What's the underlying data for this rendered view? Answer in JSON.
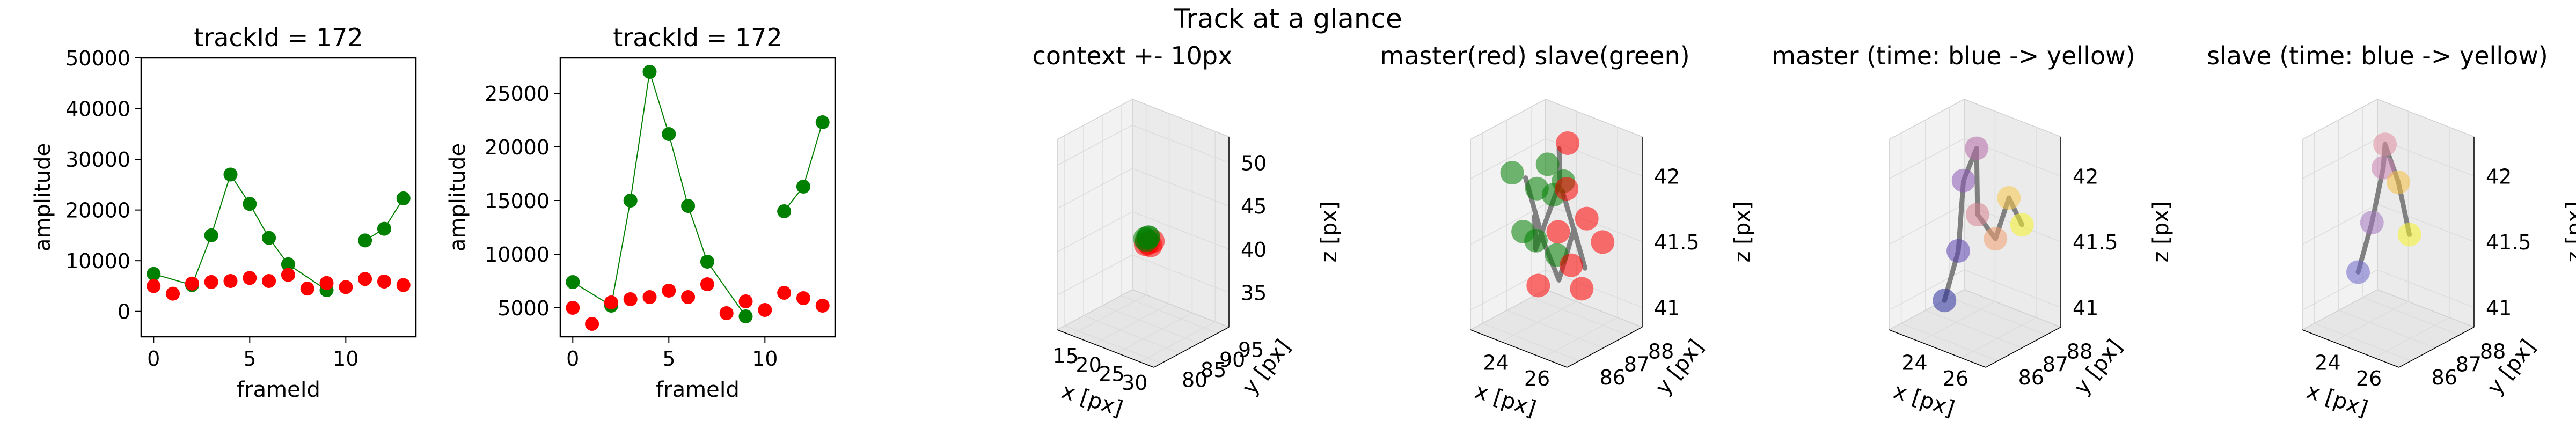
{
  "suptitle": "Track at a glance",
  "colors": {
    "green": "#008000",
    "red": "#ff0000",
    "grey": "#808080",
    "pane": "#f2f2f2",
    "pane_dark": "#e6e6e6",
    "grid": "#dcdcdc"
  },
  "chart_data": [
    {
      "type": "line",
      "title": "trackId = 172",
      "xlabel": "frameId",
      "ylabel": "amplitude",
      "xlim": [
        -0.65,
        13.65
      ],
      "ylim": [
        -5000,
        50000
      ],
      "xticks": [
        0,
        5,
        10
      ],
      "yticks": [
        0,
        10000,
        20000,
        30000,
        40000,
        50000
      ],
      "series": [
        {
          "color": "#008000",
          "connect": true,
          "segments": [
            [
              [
                0,
                7400
              ],
              [
                2,
                5200
              ],
              [
                3,
                15000
              ],
              [
                4,
                27000
              ],
              [
                5,
                21200
              ],
              [
                6,
                14500
              ],
              [
                7,
                9300
              ],
              [
                9,
                4200
              ]
            ],
            [
              [
                11,
                14000
              ],
              [
                12,
                16300
              ],
              [
                13,
                22300
              ]
            ]
          ]
        },
        {
          "color": "#ff0000",
          "connect": false,
          "segments": [
            [
              [
                0,
                5000
              ],
              [
                1,
                3500
              ],
              [
                2,
                5500
              ],
              [
                3,
                5800
              ],
              [
                4,
                6000
              ],
              [
                5,
                6600
              ],
              [
                6,
                6000
              ],
              [
                7,
                7200
              ],
              [
                8,
                4500
              ],
              [
                9,
                5600
              ],
              [
                10,
                4800
              ],
              [
                11,
                6400
              ],
              [
                12,
                5900
              ],
              [
                13,
                5200
              ]
            ]
          ]
        }
      ]
    },
    {
      "type": "line",
      "title": "trackId = 172",
      "xlabel": "frameId",
      "ylabel": "amplitude",
      "xlim": [
        -0.65,
        13.65
      ],
      "ylim": [
        2300,
        28300
      ],
      "xticks": [
        0,
        5,
        10
      ],
      "yticks": [
        5000,
        10000,
        15000,
        20000,
        25000
      ],
      "series": [
        {
          "color": "#008000",
          "connect": true,
          "segments": [
            [
              [
                0,
                7400
              ],
              [
                2,
                5200
              ],
              [
                3,
                15000
              ],
              [
                4,
                27000
              ],
              [
                5,
                21200
              ],
              [
                6,
                14500
              ],
              [
                7,
                9300
              ],
              [
                9,
                4200
              ]
            ],
            [
              [
                11,
                14000
              ],
              [
                12,
                16300
              ],
              [
                13,
                22300
              ]
            ]
          ]
        },
        {
          "color": "#ff0000",
          "connect": false,
          "segments": [
            [
              [
                0,
                5000
              ],
              [
                1,
                3500
              ],
              [
                2,
                5500
              ],
              [
                3,
                5800
              ],
              [
                4,
                6000
              ],
              [
                5,
                6600
              ],
              [
                6,
                6000
              ],
              [
                7,
                7200
              ],
              [
                8,
                4500
              ],
              [
                9,
                5600
              ],
              [
                10,
                4800
              ],
              [
                11,
                6400
              ],
              [
                12,
                5900
              ],
              [
                13,
                5200
              ]
            ]
          ]
        }
      ]
    },
    {
      "type": "scatter3d",
      "title": "context +- 10px",
      "xlabel": "x [px]",
      "ylabel": "y [px]",
      "zlabel": "z [px]",
      "xlim": [
        12,
        33
      ],
      "ylim": [
        78,
        98
      ],
      "zlim": [
        31,
        53
      ],
      "xticks": [
        15,
        20,
        25,
        30
      ],
      "yticks": [
        80,
        85,
        90,
        95
      ],
      "zticks": [
        35,
        40,
        45,
        50
      ],
      "points": [
        {
          "x": 24.2,
          "y": 86.6,
          "z": 41.4,
          "color": "#ff0000"
        },
        {
          "x": 24.6,
          "y": 86.8,
          "z": 41.6,
          "color": "#ff0000"
        },
        {
          "x": 24.9,
          "y": 87.1,
          "z": 41.3,
          "color": "#ff0000"
        },
        {
          "x": 25.2,
          "y": 87.3,
          "z": 41.8,
          "color": "#ff0000"
        },
        {
          "x": 23.8,
          "y": 86.9,
          "z": 41.9,
          "color": "#008000"
        },
        {
          "x": 24.1,
          "y": 87.4,
          "z": 42.0,
          "color": "#008000"
        },
        {
          "x": 24.5,
          "y": 87.0,
          "z": 42.2,
          "color": "#008000"
        },
        {
          "x": 23.6,
          "y": 87.6,
          "z": 41.5,
          "color": "#008000"
        }
      ]
    },
    {
      "type": "scatter3d",
      "title": "master(red) slave(green)",
      "xlabel": "x [px]",
      "ylabel": "y [px]",
      "zlabel": "z [px]",
      "xlim": [
        22.5,
        27.2
      ],
      "ylim": [
        85.5,
        88.6
      ],
      "zlim": [
        40.85,
        42.3
      ],
      "xticks": [
        24,
        26
      ],
      "yticks": [
        86,
        87,
        88
      ],
      "zticks": [
        41.0,
        41.5,
        42.0
      ],
      "paths": [
        {
          "color": "#808080",
          "points": [
            [
              24.0,
              86.5,
              42.0
            ],
            [
              24.4,
              86.9,
              41.5
            ],
            [
              24.8,
              87.2,
              41.2
            ],
            [
              25.3,
              87.4,
              41.6
            ],
            [
              25.6,
              87.6,
              41.3
            ],
            [
              25.1,
              87.1,
              41.9
            ]
          ]
        },
        {
          "color": "#808080",
          "points": [
            [
              24.2,
              86.7,
              41.7
            ],
            [
              23.9,
              87.0,
              41.4
            ],
            [
              24.5,
              87.5,
              41.9
            ],
            [
              24.1,
              87.8,
              42.1
            ]
          ]
        }
      ],
      "points": [
        {
          "x": 23.7,
          "y": 86.2,
          "z": 42.05,
          "color": "#008000"
        },
        {
          "x": 24.0,
          "y": 86.4,
          "z": 41.6,
          "color": "#008000"
        },
        {
          "x": 24.2,
          "y": 86.8,
          "z": 41.9,
          "color": "#008000"
        },
        {
          "x": 23.8,
          "y": 87.1,
          "z": 41.45,
          "color": "#008000"
        },
        {
          "x": 24.6,
          "y": 86.9,
          "z": 42.1,
          "color": "#008000"
        },
        {
          "x": 24.3,
          "y": 87.4,
          "z": 41.8,
          "color": "#008000"
        },
        {
          "x": 24.9,
          "y": 87.3,
          "z": 41.95,
          "color": "#008000"
        },
        {
          "x": 24.1,
          "y": 87.7,
          "z": 41.3,
          "color": "#008000"
        },
        {
          "x": 24.5,
          "y": 86.6,
          "z": 41.2,
          "color": "#ff0000"
        },
        {
          "x": 25.0,
          "y": 87.0,
          "z": 41.6,
          "color": "#ff0000"
        },
        {
          "x": 25.4,
          "y": 87.2,
          "z": 41.35,
          "color": "#ff0000"
        },
        {
          "x": 25.8,
          "y": 87.5,
          "z": 41.7,
          "color": "#ff0000"
        },
        {
          "x": 25.2,
          "y": 87.8,
          "z": 41.1,
          "color": "#ff0000"
        },
        {
          "x": 24.7,
          "y": 87.6,
          "z": 41.85,
          "color": "#ff0000"
        },
        {
          "x": 26.1,
          "y": 87.9,
          "z": 41.5,
          "color": "#ff0000"
        },
        {
          "x": 24.4,
          "y": 87.9,
          "z": 42.15,
          "color": "#ff0000"
        }
      ]
    },
    {
      "type": "scatter3d",
      "title": "master (time: blue -> yellow)",
      "xlabel": "x [px]",
      "ylabel": "y [px]",
      "zlabel": "z [px]",
      "xlim": [
        22.5,
        27.2
      ],
      "ylim": [
        85.5,
        88.6
      ],
      "zlim": [
        40.85,
        42.3
      ],
      "xticks": [
        24,
        26
      ],
      "yticks": [
        86,
        87,
        88
      ],
      "zticks": [
        41.0,
        41.5,
        42.0
      ],
      "paths": [
        {
          "color": "#808080",
          "points": [
            [
              23.9,
              86.6,
              41.05
            ],
            [
              24.1,
              87.0,
              41.4
            ],
            [
              24.0,
              87.3,
              41.9
            ],
            [
              24.4,
              87.5,
              42.15
            ],
            [
              24.8,
              87.2,
              41.7
            ],
            [
              25.2,
              87.6,
              41.5
            ],
            [
              25.5,
              87.9,
              41.8
            ],
            [
              25.9,
              88.1,
              41.6
            ]
          ]
        }
      ],
      "points": [
        {
          "x": 23.9,
          "y": 86.6,
          "z": 41.05,
          "color": "#2c2f9e"
        },
        {
          "x": 24.1,
          "y": 87.0,
          "z": 41.4,
          "color": "#5b3fb0"
        },
        {
          "x": 24.0,
          "y": 87.3,
          "z": 41.9,
          "color": "#8a55b5"
        },
        {
          "x": 24.4,
          "y": 87.5,
          "z": 42.15,
          "color": "#b56aa8"
        },
        {
          "x": 24.8,
          "y": 87.2,
          "z": 41.7,
          "color": "#d98290"
        },
        {
          "x": 25.2,
          "y": 87.6,
          "z": 41.5,
          "color": "#f2a070"
        },
        {
          "x": 25.5,
          "y": 87.9,
          "z": 41.8,
          "color": "#f8c94a"
        },
        {
          "x": 25.9,
          "y": 88.1,
          "z": 41.6,
          "color": "#f7f32a"
        }
      ]
    },
    {
      "type": "scatter3d",
      "title": "slave (time: blue -> yellow)",
      "xlabel": "x [px]",
      "ylabel": "y [px]",
      "zlabel": "z [px]",
      "xlim": [
        22.5,
        27.2
      ],
      "ylim": [
        85.5,
        88.6
      ],
      "zlim": [
        40.85,
        42.3
      ],
      "xticks": [
        24,
        26
      ],
      "yticks": [
        86,
        87,
        88
      ],
      "zticks": [
        41.0,
        41.5,
        42.0
      ],
      "paths": [
        {
          "color": "#808080",
          "points": [
            [
              23.8,
              86.7,
              41.25
            ],
            [
              24.0,
              87.1,
              41.6
            ],
            [
              24.2,
              87.4,
              42.0
            ],
            [
              24.4,
              87.3,
              42.2
            ],
            [
              24.7,
              87.6,
              41.9
            ],
            [
              25.0,
              87.8,
              41.5
            ]
          ]
        }
      ],
      "points": [
        {
          "x": 23.8,
          "y": 86.7,
          "z": 41.25,
          "color": "#6a66c8"
        },
        {
          "x": 24.0,
          "y": 87.1,
          "z": 41.6,
          "color": "#a275c0"
        },
        {
          "x": 24.2,
          "y": 87.4,
          "z": 42.0,
          "color": "#c87fb0"
        },
        {
          "x": 24.4,
          "y": 87.3,
          "z": 42.2,
          "color": "#e08ca0"
        },
        {
          "x": 24.7,
          "y": 87.6,
          "z": 41.9,
          "color": "#f8c040"
        },
        {
          "x": 25.0,
          "y": 87.8,
          "z": 41.5,
          "color": "#f7f32a"
        }
      ]
    }
  ]
}
